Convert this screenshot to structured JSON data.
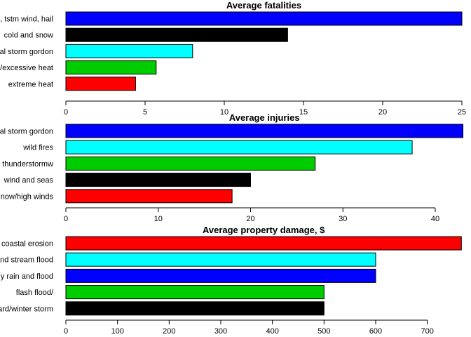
{
  "chart_data": [
    {
      "type": "bar",
      "orientation": "horizontal",
      "title": "Average fatalities",
      "categories": [
        "tstm wind, hail",
        "cold and snow",
        "tropical storm gordon",
        "excessive heat",
        "extreme heat"
      ],
      "category_labels": [
        ", tstm wind, hail",
        "cold and snow",
        "cal storm gordon",
        "/excessive heat",
        "extreme heat"
      ],
      "values": [
        25,
        14,
        8,
        5.7,
        4.4
      ],
      "colors": [
        "#0000ff",
        "#000000",
        "#00ffff",
        "#00cd00",
        "#ff0000"
      ],
      "xticks": [
        0,
        5,
        10,
        15,
        20,
        25
      ],
      "xlim": [
        0,
        25
      ],
      "xlabel": "",
      "ylabel": ""
    },
    {
      "type": "bar",
      "orientation": "horizontal",
      "title": "Average injuries",
      "categories": [
        "tropical storm gordon",
        "wild fires",
        "thunderstormw",
        "wind and seas",
        "snow/high winds"
      ],
      "category_labels": [
        "cal storm gordon",
        "wild fires",
        "thunderstormw",
        "wind and seas",
        "now/high winds"
      ],
      "values": [
        43,
        37.5,
        27,
        20,
        18
      ],
      "colors": [
        "#0000ff",
        "#00ffff",
        "#00cd00",
        "#000000",
        "#ff0000"
      ],
      "xticks": [
        0,
        10,
        20,
        30,
        40
      ],
      "xlim": [
        0,
        43
      ],
      "xlabel": "",
      "ylabel": ""
    },
    {
      "type": "bar",
      "orientation": "horizontal",
      "title": "Average property damage, $",
      "categories": [
        "coastal erosion",
        "and stream flood",
        "heavy rain and flood",
        "flash flood/",
        "blizzard/winter storm"
      ],
      "category_labels": [
        "coastal erosion",
        "and stream flood",
        "y rain and flood",
        "flash flood/",
        "ard/winter storm"
      ],
      "values": [
        766,
        600,
        600,
        500,
        500
      ],
      "colors": [
        "#ff0000",
        "#00ffff",
        "#0000ff",
        "#00cd00",
        "#000000"
      ],
      "xticks": [
        0,
        100,
        200,
        300,
        400,
        500,
        600,
        700
      ],
      "xlim": [
        0,
        766
      ],
      "xlabel": "",
      "ylabel": ""
    }
  ]
}
